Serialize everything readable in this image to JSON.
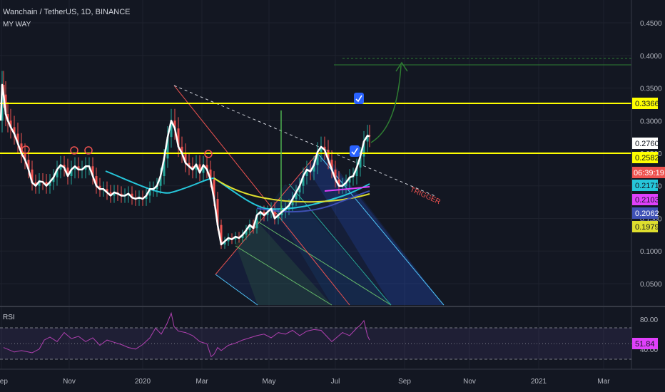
{
  "header": {
    "title": "Wanchain / TetherUS, 1D, BINANCE",
    "indicator": "MY WAY"
  },
  "rsi_panel": {
    "label": "RSI",
    "value": "51.84"
  },
  "price_tags": {
    "resistance": "0.3366",
    "last": "0.2760",
    "support": "0.2582",
    "countdown": "06:39:19",
    "ma_cyan": "0.2171",
    "ma_magenta": "0.2103",
    "ma_blue": "0.2062",
    "ma_yellow": "0.1979"
  },
  "annotation": {
    "trigger": "TRIGGER"
  },
  "colors": {
    "background": "#131722",
    "price": "#ffffff",
    "level": "#ffff00",
    "cyan_ma": "#26c6da",
    "yellow_ma": "#dede2e",
    "magenta_ma": "#e040fb",
    "blue_ma": "#3f51b5",
    "rsi": "#b040b0",
    "candle_up": "#26a69a",
    "candle_down": "#ef5350",
    "projection": "#2e7d32"
  },
  "chart_data": [
    {
      "type": "line",
      "name": "price",
      "x_ticks": [
        "Sep",
        "Nov",
        "2020",
        "Mar",
        "May",
        "Jul",
        "Sep",
        "Nov",
        "2021",
        "Mar"
      ],
      "y_ticks": [
        0.05,
        0.1,
        0.15,
        0.2,
        0.25,
        0.3,
        0.35,
        0.4,
        0.45
      ],
      "ylim": [
        0.015,
        0.485
      ],
      "horizontal_levels": [
        0.3366,
        0.2582,
        0.396,
        0.408
      ],
      "series": [
        {
          "x": [
            1,
            3,
            5,
            8,
            11,
            15,
            20,
            25,
            30,
            35,
            40,
            45,
            50,
            55,
            60,
            65,
            70,
            75,
            80,
            85,
            90,
            95,
            100,
            105,
            110,
            115,
            120,
            125,
            130,
            135,
            140,
            145,
            150,
            155,
            160,
            165,
            170,
            175,
            180,
            185,
            190,
            195,
            200,
            205,
            210,
            215,
            220,
            225,
            230,
            235,
            240,
            245,
            250,
            255,
            260,
            265,
            270,
            275,
            280,
            285,
            290,
            295,
            300,
            305,
            310,
            315,
            320,
            325,
            330,
            335,
            340,
            345,
            350,
            355,
            360,
            365,
            370,
            375,
            380,
            385,
            390,
            395,
            400,
            405,
            410,
            415,
            420,
            425,
            430,
            435,
            440,
            445,
            450,
            455,
            460,
            465,
            470,
            475,
            480,
            485,
            490,
            495,
            500,
            505,
            510,
            515,
            518
          ],
          "values": [
            0.3,
            0.355,
            0.34,
            0.31,
            0.3,
            0.29,
            0.28,
            0.265,
            0.25,
            0.24,
            0.225,
            0.205,
            0.2,
            0.207,
            0.206,
            0.2,
            0.206,
            0.213,
            0.225,
            0.232,
            0.228,
            0.215,
            0.225,
            0.23,
            0.225,
            0.225,
            0.23,
            0.23,
            0.215,
            0.2,
            0.195,
            0.195,
            0.19,
            0.185,
            0.19,
            0.188,
            0.185,
            0.185,
            0.188,
            0.182,
            0.18,
            0.182,
            0.18,
            0.185,
            0.195,
            0.195,
            0.2,
            0.215,
            0.242,
            0.275,
            0.3,
            0.288,
            0.26,
            0.25,
            0.235,
            0.23,
            0.225,
            0.233,
            0.22,
            0.232,
            0.225,
            0.21,
            0.18,
            0.14,
            0.11,
            0.115,
            0.12,
            0.118,
            0.122,
            0.12,
            0.125,
            0.132,
            0.14,
            0.135,
            0.155,
            0.16,
            0.155,
            0.16,
            0.165,
            0.15,
            0.155,
            0.16,
            0.165,
            0.17,
            0.18,
            0.19,
            0.2,
            0.215,
            0.225,
            0.222,
            0.232,
            0.252,
            0.26,
            0.255,
            0.24,
            0.225,
            0.21,
            0.2,
            0.2,
            0.205,
            0.213,
            0.215,
            0.228,
            0.245,
            0.268,
            0.277,
            0.276
          ]
        }
      ]
    },
    {
      "type": "line",
      "name": "RSI",
      "x_ticks": [
        "Sep",
        "Nov",
        "2020",
        "Mar",
        "May",
        "Jul",
        "Sep",
        "Nov",
        "2021",
        "Mar"
      ],
      "y_ticks": [
        40,
        80
      ],
      "ylim": [
        15,
        95
      ],
      "bands": [
        30,
        50,
        70
      ],
      "series": [
        {
          "x": [
            5,
            20,
            30,
            40,
            45,
            55,
            62,
            70,
            80,
            90,
            100,
            110,
            120,
            130,
            140,
            150,
            160,
            170,
            180,
            190,
            200,
            210,
            218,
            226,
            234,
            240,
            244,
            250,
            260,
            270,
            280,
            290,
            296,
            300,
            305,
            310,
            320,
            330,
            340,
            350,
            360,
            370,
            380,
            390,
            400,
            410,
            420,
            430,
            440,
            450,
            460,
            465,
            470,
            480,
            490,
            500,
            505,
            510,
            515,
            518
          ],
          "values": [
            42,
            36,
            38,
            36,
            35,
            40,
            52,
            56,
            50,
            62,
            54,
            57,
            50,
            55,
            45,
            52,
            49,
            46,
            42,
            40,
            46,
            55,
            68,
            60,
            74,
            88,
            70,
            64,
            62,
            58,
            50,
            47,
            30,
            33,
            42,
            38,
            45,
            48,
            52,
            55,
            58,
            60,
            55,
            62,
            60,
            65,
            58,
            64,
            66,
            65,
            55,
            50,
            54,
            62,
            58,
            68,
            72,
            78,
            58,
            52
          ]
        }
      ]
    }
  ]
}
